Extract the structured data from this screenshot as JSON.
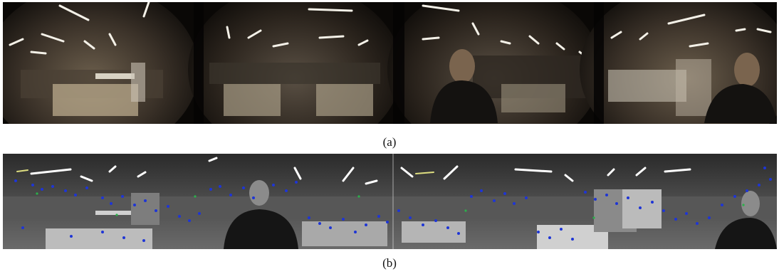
{
  "figure": {
    "panel_a": {
      "caption": "(a)"
    },
    "panel_b": {
      "caption": "(b)"
    }
  }
}
